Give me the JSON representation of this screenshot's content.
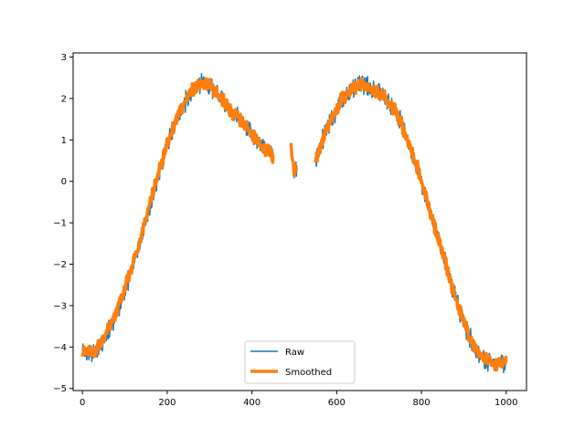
{
  "chart_data": {
    "type": "line",
    "title": "",
    "xlabel": "",
    "ylabel": "",
    "xlim": [
      -22,
      1048
    ],
    "ylim": [
      -5.05,
      3.1
    ],
    "xticks": [
      0,
      200,
      400,
      600,
      800,
      1000
    ],
    "yticks": [
      -5,
      -4,
      -3,
      -2,
      -1,
      0,
      1,
      2,
      3
    ],
    "grid": false,
    "legend_position": "lower-center",
    "series": [
      {
        "name": "Raw",
        "color": "#1f77b4",
        "noise_amplitude": 0.28,
        "gaps": [
          [
            450,
            492
          ],
          [
            506,
            550
          ]
        ],
        "x": [
          0,
          10,
          20,
          30,
          40,
          50,
          60,
          70,
          80,
          90,
          100,
          110,
          120,
          130,
          140,
          150,
          160,
          170,
          180,
          190,
          200,
          210,
          220,
          230,
          240,
          250,
          260,
          270,
          280,
          290,
          300,
          310,
          320,
          330,
          340,
          350,
          360,
          370,
          380,
          390,
          400,
          410,
          420,
          430,
          440,
          450,
          492,
          496,
          500,
          506,
          550,
          560,
          570,
          580,
          590,
          600,
          610,
          620,
          630,
          640,
          650,
          660,
          670,
          680,
          690,
          700,
          710,
          720,
          730,
          740,
          750,
          760,
          770,
          780,
          790,
          800,
          810,
          820,
          830,
          840,
          850,
          860,
          870,
          880,
          890,
          900,
          910,
          920,
          930,
          940,
          950,
          960,
          970,
          980,
          990,
          1000
        ],
        "y": [
          -4.1,
          -4.2,
          -4.15,
          -4.1,
          -4.0,
          -3.85,
          -3.65,
          -3.45,
          -3.2,
          -2.95,
          -2.65,
          -2.35,
          -2.0,
          -1.65,
          -1.3,
          -0.95,
          -0.55,
          -0.2,
          0.15,
          0.5,
          0.85,
          1.15,
          1.4,
          1.65,
          1.85,
          2.05,
          2.2,
          2.3,
          2.35,
          2.35,
          2.3,
          2.2,
          2.1,
          2.0,
          1.85,
          1.7,
          1.6,
          1.5,
          1.4,
          1.3,
          1.15,
          1.0,
          0.9,
          0.8,
          0.7,
          0.6,
          0.9,
          0.6,
          0.2,
          0.3,
          0.5,
          0.8,
          1.1,
          1.35,
          1.55,
          1.75,
          1.95,
          2.05,
          2.15,
          2.25,
          2.3,
          2.35,
          2.3,
          2.25,
          2.2,
          2.15,
          2.05,
          1.95,
          1.8,
          1.65,
          1.45,
          1.2,
          0.95,
          0.65,
          0.35,
          0.0,
          -0.35,
          -0.7,
          -1.05,
          -1.4,
          -1.75,
          -2.1,
          -2.45,
          -2.8,
          -3.1,
          -3.4,
          -3.65,
          -3.9,
          -4.05,
          -4.2,
          -4.3,
          -4.35,
          -4.4,
          -4.4,
          -4.4,
          -4.35
        ]
      },
      {
        "name": "Smoothed",
        "color": "#ff7f0e",
        "noise_amplitude": 0.22,
        "gaps": [
          [
            450,
            492
          ],
          [
            506,
            550
          ]
        ],
        "x": [
          0,
          10,
          20,
          30,
          40,
          50,
          60,
          70,
          80,
          90,
          100,
          110,
          120,
          130,
          140,
          150,
          160,
          170,
          180,
          190,
          200,
          210,
          220,
          230,
          240,
          250,
          260,
          270,
          280,
          290,
          300,
          310,
          320,
          330,
          340,
          350,
          360,
          370,
          380,
          390,
          400,
          410,
          420,
          430,
          440,
          450,
          492,
          496,
          500,
          506,
          550,
          560,
          570,
          580,
          590,
          600,
          610,
          620,
          630,
          640,
          650,
          660,
          670,
          680,
          690,
          700,
          710,
          720,
          730,
          740,
          750,
          760,
          770,
          780,
          790,
          800,
          810,
          820,
          830,
          840,
          850,
          860,
          870,
          880,
          890,
          900,
          910,
          920,
          930,
          940,
          950,
          960,
          970,
          980,
          990,
          1000
        ],
        "y": [
          -4.05,
          -4.15,
          -4.1,
          -4.05,
          -3.95,
          -3.8,
          -3.6,
          -3.4,
          -3.15,
          -2.9,
          -2.6,
          -2.3,
          -1.95,
          -1.6,
          -1.25,
          -0.9,
          -0.5,
          -0.15,
          0.2,
          0.55,
          0.9,
          1.2,
          1.45,
          1.7,
          1.9,
          2.1,
          2.25,
          2.3,
          2.35,
          2.35,
          2.3,
          2.2,
          2.1,
          2.0,
          1.85,
          1.7,
          1.6,
          1.5,
          1.4,
          1.3,
          1.15,
          1.0,
          0.9,
          0.8,
          0.7,
          0.6,
          0.8,
          0.55,
          0.2,
          0.3,
          0.5,
          0.8,
          1.1,
          1.35,
          1.55,
          1.75,
          1.95,
          2.05,
          2.15,
          2.25,
          2.3,
          2.35,
          2.3,
          2.25,
          2.2,
          2.15,
          2.05,
          1.95,
          1.8,
          1.65,
          1.45,
          1.2,
          0.95,
          0.65,
          0.35,
          0.0,
          -0.35,
          -0.7,
          -1.05,
          -1.4,
          -1.75,
          -2.1,
          -2.45,
          -2.8,
          -3.1,
          -3.4,
          -3.65,
          -3.9,
          -4.05,
          -4.2,
          -4.3,
          -4.35,
          -4.4,
          -4.4,
          -4.4,
          -4.35
        ]
      }
    ]
  }
}
